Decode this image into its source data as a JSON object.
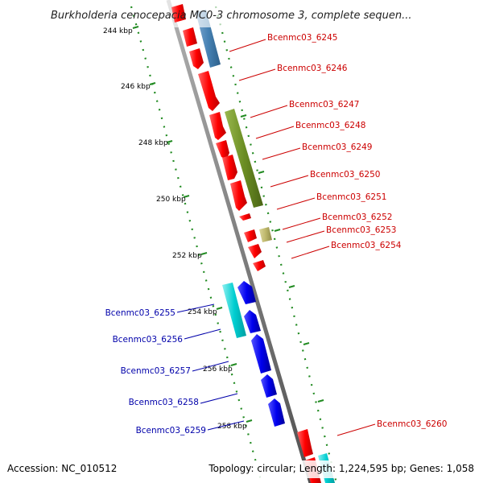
{
  "title": "Burkholderia cenocepacia MC0-3 chromosome 3, complete sequen...",
  "footer": {
    "accession": "Accession: NC_010512",
    "summary": "Topology: circular; Length: 1,224,595 bp; Genes: 1,058"
  },
  "colors": {
    "forward_gene": "#ff0000",
    "forward_label": "#cc0000",
    "reverse_gene": "#0000ee",
    "reverse_label": "#0000aa",
    "backbone": "#808080",
    "tick": "#228b22",
    "feature_steelblue": "#4682b4",
    "feature_olive": "#6b8e23",
    "feature_khaki": "#bdb76b",
    "feature_cyan": "#00ced1"
  },
  "scale_labels": [
    "244 kbp",
    "246 kbp",
    "248 kbp",
    "250 kbp",
    "252 kbp",
    "254 kbp",
    "256 kbp",
    "258 kbp"
  ],
  "right_labels": [
    "Bcenmc03_6245",
    "Bcenmc03_6246",
    "Bcenmc03_6247",
    "Bcenmc03_6248",
    "Bcenmc03_6249",
    "Bcenmc03_6250",
    "Bcenmc03_6251",
    "Bcenmc03_6252",
    "Bcenmc03_6253",
    "Bcenmc03_6254",
    "Bcenmc03_6260"
  ],
  "left_labels": [
    "Bcenmc03_6255",
    "Bcenmc03_6256",
    "Bcenmc03_6257",
    "Bcenmc03_6258",
    "Bcenmc03_6259"
  ]
}
